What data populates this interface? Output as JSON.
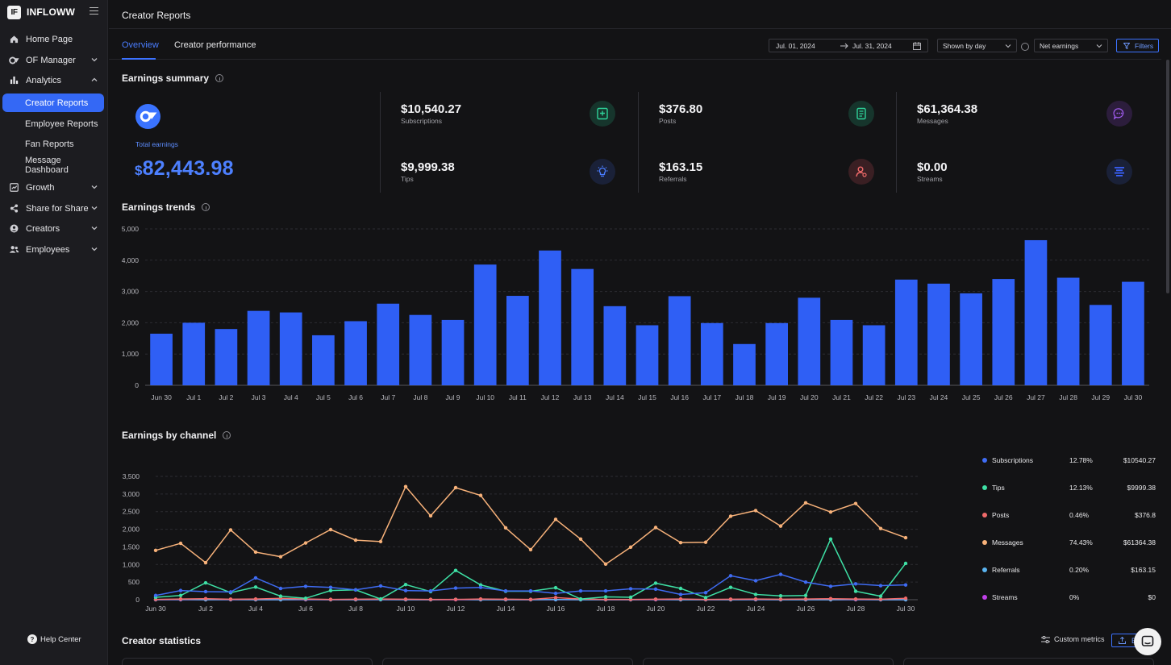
{
  "app": {
    "logo_text": "IF",
    "name": "INFLOWW"
  },
  "sidebar": {
    "items": [
      {
        "label": "Home Page",
        "icon": "home-icon"
      },
      {
        "label": "OF Manager",
        "icon": "of-icon"
      },
      {
        "label": "Analytics",
        "icon": "bar-chart-icon"
      },
      {
        "label": "Growth",
        "icon": "trend-icon"
      },
      {
        "label": "Share for Share",
        "icon": "share-icon"
      },
      {
        "label": "Creators",
        "icon": "user-circle-icon"
      },
      {
        "label": "Employees",
        "icon": "users-icon"
      }
    ],
    "analytics_sub": [
      "Creator Reports",
      "Employee Reports",
      "Fan Reports",
      "Message Dashboard"
    ],
    "help": "Help Center"
  },
  "header": {
    "title": "Creator Reports"
  },
  "tabs": [
    "Overview",
    "Creator performance"
  ],
  "controls": {
    "date_from": "Jul. 01, 2024",
    "date_to": "Jul. 31, 2024",
    "grouping": "Shown by day",
    "metric": "Net earnings",
    "filters": "Filters"
  },
  "summary": {
    "title": "Earnings summary",
    "total_label": "Total earnings",
    "total_currency": "$",
    "total_value": "82,443.98",
    "metrics": [
      {
        "value": "$10,540.27",
        "label": "Subscriptions",
        "icon": "subscription-icon",
        "color": "#2fd39a"
      },
      {
        "value": "$9,999.38",
        "label": "Tips",
        "icon": "bulb-icon",
        "color": "#4a7dff"
      },
      {
        "value": "$376.80",
        "label": "Posts",
        "icon": "post-icon",
        "color": "#2fd39a"
      },
      {
        "value": "$163.15",
        "label": "Referrals",
        "icon": "referral-icon",
        "color": "#f06a6a"
      },
      {
        "value": "$61,364.38",
        "label": "Messages",
        "icon": "message-icon",
        "color": "#a15cf0"
      },
      {
        "value": "$0.00",
        "label": "Streams",
        "icon": "stream-icon",
        "color": "#3a63ff"
      }
    ]
  },
  "trends": {
    "title": "Earnings trends"
  },
  "channel": {
    "title": "Earnings by channel",
    "legend": [
      {
        "name": "Subscriptions",
        "pct": "12.78%",
        "amount": "$10540.27",
        "color": "#3f6cf4"
      },
      {
        "name": "Tips",
        "pct": "12.13%",
        "amount": "$9999.38",
        "color": "#3ee0a5"
      },
      {
        "name": "Posts",
        "pct": "0.46%",
        "amount": "$376.8",
        "color": "#f06a6a"
      },
      {
        "name": "Messages",
        "pct": "74.43%",
        "amount": "$61364.38",
        "color": "#f8b27a"
      },
      {
        "name": "Referrals",
        "pct": "0.20%",
        "amount": "$163.15",
        "color": "#5ab4f0"
      },
      {
        "name": "Streams",
        "pct": "0%",
        "amount": "$0",
        "color": "#c040e8"
      }
    ]
  },
  "stats": {
    "title": "Creator statistics",
    "custom_metrics": "Custom metrics",
    "export": "E"
  },
  "chart_data": [
    {
      "type": "bar",
      "title": "Earnings trends",
      "categories": [
        "Jun 30",
        "Jul 1",
        "Jul 2",
        "Jul 3",
        "Jul 4",
        "Jul 5",
        "Jul 6",
        "Jul 7",
        "Jul 8",
        "Jul 9",
        "Jul 10",
        "Jul 11",
        "Jul 12",
        "Jul 13",
        "Jul 14",
        "Jul 15",
        "Jul 16",
        "Jul 17",
        "Jul 18",
        "Jul 19",
        "Jul 20",
        "Jul 21",
        "Jul 22",
        "Jul 23",
        "Jul 24",
        "Jul 25",
        "Jul 26",
        "Jul 27",
        "Jul 28",
        "Jul 29",
        "Jul 30"
      ],
      "values": [
        1650,
        2000,
        1800,
        2380,
        2330,
        1600,
        2050,
        2610,
        2250,
        2090,
        3860,
        2860,
        4310,
        3720,
        2530,
        1920,
        2850,
        1990,
        1320,
        1990,
        2800,
        2090,
        1920,
        3380,
        3250,
        2940,
        3400,
        4640,
        3440,
        2570,
        3310
      ],
      "yticks": [
        "0",
        "1,000",
        "2,000",
        "3,000",
        "4,000",
        "5,000"
      ],
      "ylim": [
        0,
        5000
      ],
      "color": "#2f5ff5",
      "grid": true
    },
    {
      "type": "line",
      "title": "Earnings by channel",
      "x": [
        "Jun 30",
        "Jul 1",
        "Jul 2",
        "Jul 3",
        "Jul 4",
        "Jul 5",
        "Jul 6",
        "Jul 7",
        "Jul 8",
        "Jul 9",
        "Jul 10",
        "Jul 11",
        "Jul 12",
        "Jul 13",
        "Jul 14",
        "Jul 15",
        "Jul 16",
        "Jul 17",
        "Jul 18",
        "Jul 19",
        "Jul 20",
        "Jul 21",
        "Jul 22",
        "Jul 23",
        "Jul 24",
        "Jul 25",
        "Jul 26",
        "Jul 27",
        "Jul 28",
        "Jul 29",
        "Jul 30"
      ],
      "xtick_labels": [
        "Jun 30",
        "Jul 2",
        "Jul 4",
        "Jul 6",
        "Jul 8",
        "Jul 10",
        "Jul 12",
        "Jul 14",
        "Jul 16",
        "Jul 18",
        "Jul 20",
        "Jul 22",
        "Jul 24",
        "Jul 26",
        "Jul 28",
        "Jul 30"
      ],
      "yticks": [
        "0",
        "500",
        "1,000",
        "1,500",
        "2,000",
        "2,500",
        "3,000",
        "3,500"
      ],
      "ylim": [
        0,
        3500
      ],
      "grid": true,
      "legend_position": "right",
      "series": [
        {
          "name": "Subscriptions",
          "color": "#3f6cf4",
          "values": [
            120,
            260,
            230,
            220,
            620,
            320,
            380,
            350,
            280,
            390,
            260,
            250,
            330,
            350,
            250,
            250,
            180,
            250,
            250,
            310,
            300,
            150,
            200,
            680,
            540,
            720,
            500,
            380,
            450,
            400,
            420
          ]
        },
        {
          "name": "Tips",
          "color": "#3ee0a5",
          "values": [
            70,
            120,
            480,
            200,
            360,
            100,
            40,
            260,
            280,
            20,
            430,
            230,
            830,
            420,
            240,
            240,
            340,
            20,
            80,
            70,
            470,
            320,
            60,
            350,
            150,
            110,
            120,
            1720,
            240,
            100,
            1030
          ]
        },
        {
          "name": "Posts",
          "color": "#f06a6a",
          "values": [
            10,
            20,
            30,
            15,
            20,
            40,
            20,
            10,
            15,
            20,
            15,
            10,
            10,
            20,
            15,
            10,
            60,
            20,
            10,
            10,
            15,
            20,
            10,
            15,
            20,
            15,
            20,
            30,
            20,
            15,
            40
          ]
        },
        {
          "name": "Messages",
          "color": "#f8b27a",
          "values": [
            1400,
            1600,
            1050,
            1980,
            1350,
            1220,
            1610,
            1990,
            1690,
            1650,
            3210,
            2380,
            3180,
            2960,
            2040,
            1420,
            2280,
            1720,
            1010,
            1490,
            2050,
            1620,
            1630,
            2370,
            2530,
            2090,
            2750,
            2490,
            2730,
            2020,
            1760
          ]
        },
        {
          "name": "Referrals",
          "color": "#5ab4f0",
          "values": [
            0,
            10,
            0,
            5,
            0,
            0,
            10,
            0,
            0,
            5,
            0,
            0,
            10,
            0,
            0,
            0,
            5,
            0,
            0,
            0,
            10,
            0,
            0,
            0,
            5,
            0,
            0,
            0,
            10,
            0,
            0
          ]
        },
        {
          "name": "Streams",
          "color": "#c040e8",
          "values": [
            0,
            0,
            0,
            0,
            0,
            0,
            0,
            0,
            0,
            0,
            0,
            0,
            0,
            0,
            0,
            0,
            0,
            0,
            0,
            0,
            0,
            0,
            0,
            0,
            0,
            0,
            0,
            0,
            0,
            0,
            0
          ]
        }
      ]
    }
  ]
}
